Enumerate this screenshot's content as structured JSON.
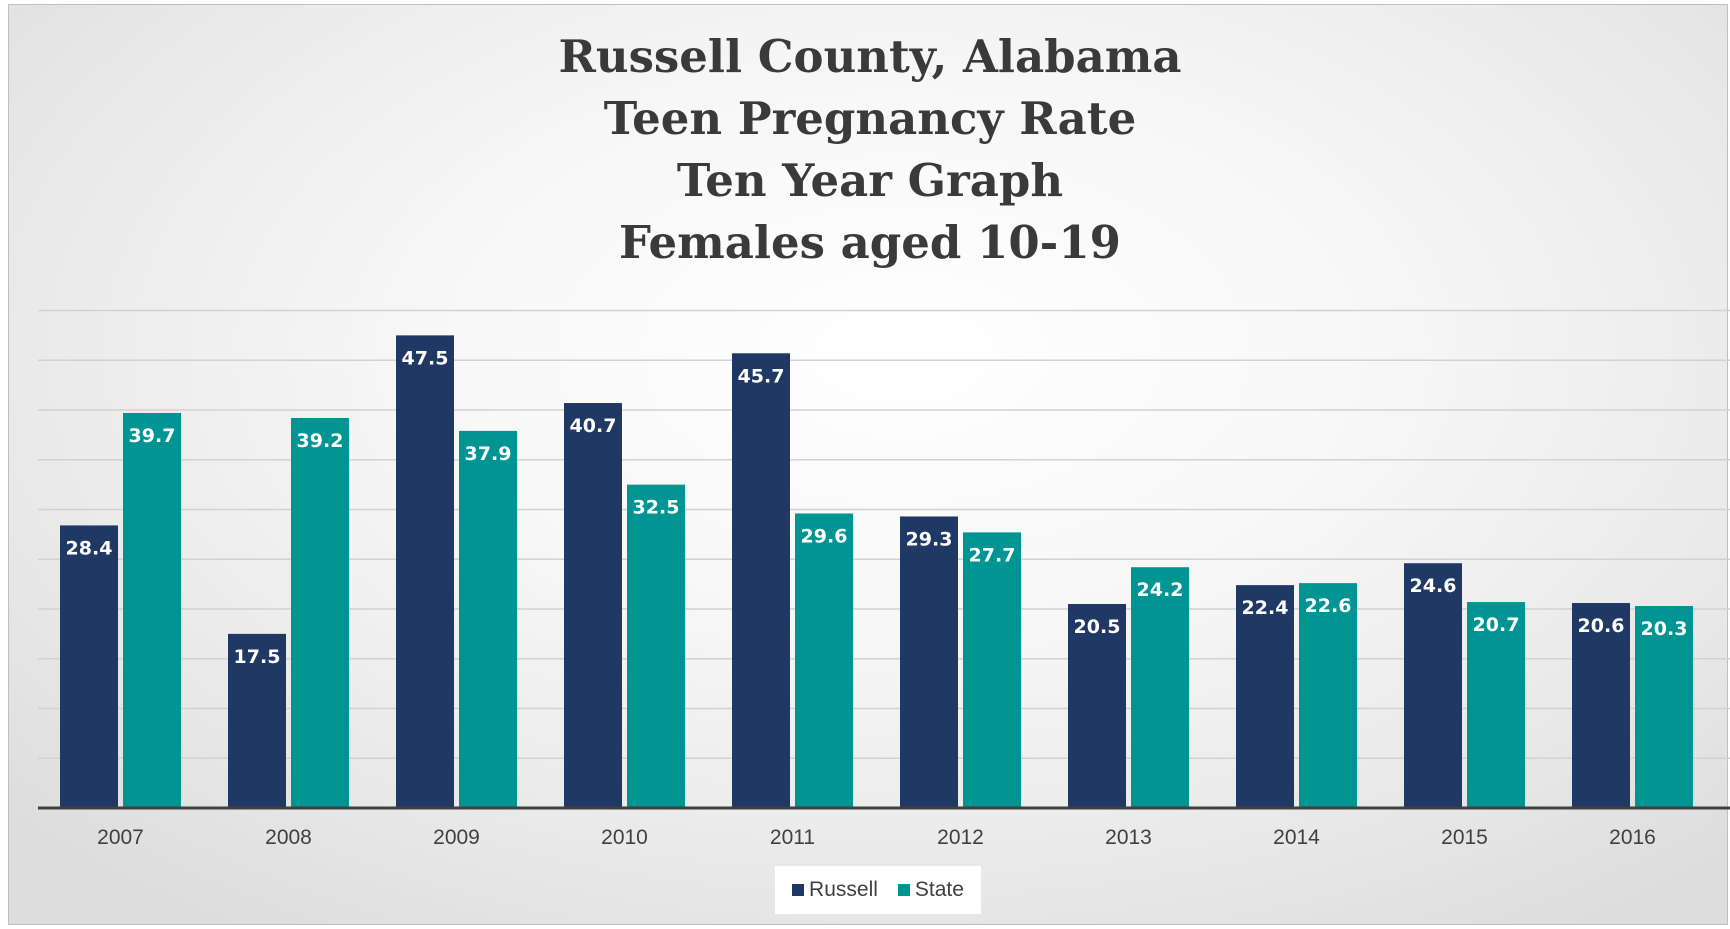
{
  "chart_data": {
    "type": "bar",
    "title_lines": [
      "Russell County, Alabama",
      "Teen Pregnancy Rate",
      "Ten Year Graph",
      "Females aged 10-19"
    ],
    "categories": [
      "2007",
      "2008",
      "2009",
      "2010",
      "2011",
      "2012",
      "2013",
      "2014",
      "2015",
      "2016"
    ],
    "series": [
      {
        "name": "Russell",
        "color": "#203864",
        "values": [
          28.4,
          17.5,
          47.5,
          40.7,
          45.7,
          29.3,
          20.5,
          22.4,
          24.6,
          20.6
        ]
      },
      {
        "name": "State",
        "color": "#009593",
        "values": [
          39.7,
          39.2,
          37.9,
          32.5,
          29.6,
          27.7,
          24.2,
          22.6,
          20.7,
          20.3
        ]
      }
    ],
    "ylim": [
      0,
      50
    ],
    "y_gridline_step": 5,
    "grid": true,
    "data_labels": "inside-top",
    "legend_position": "bottom",
    "xlabel": "",
    "ylabel": ""
  }
}
